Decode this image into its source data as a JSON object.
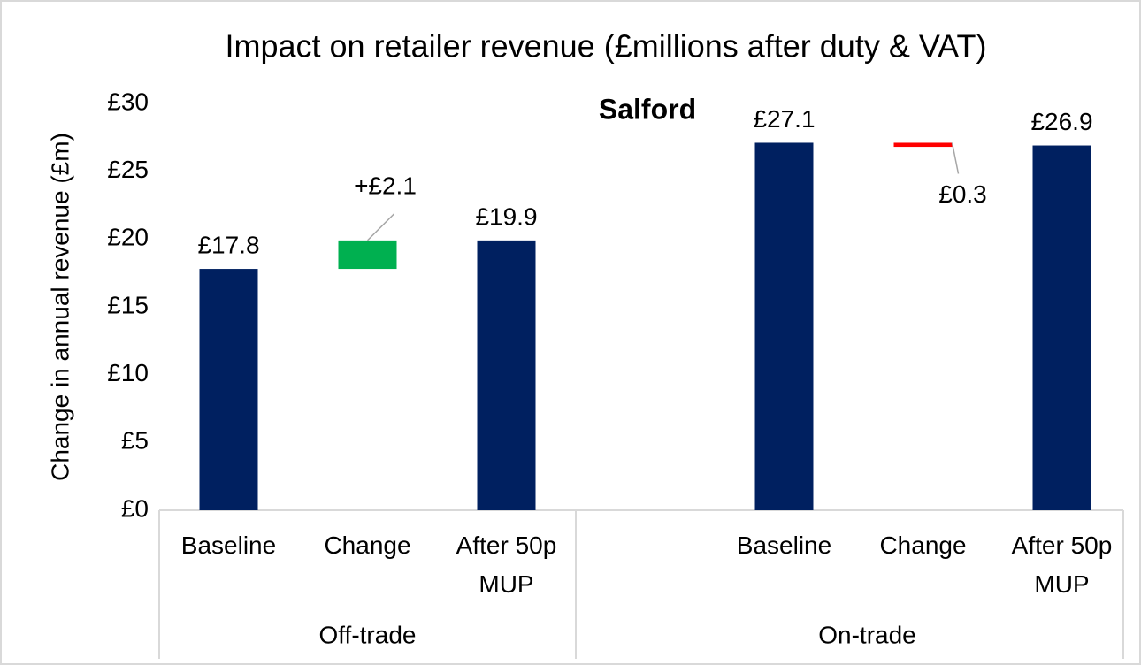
{
  "chart_data": {
    "type": "waterfall",
    "title": "Impact on retailer revenue (£millions after duty & VAT)",
    "subtitle": "Salford",
    "ylabel": "Change in annual revenue (£m)",
    "groups": [
      {
        "name": "Off-trade",
        "categories": [
          "Baseline",
          "Change",
          "After 50p MUP"
        ],
        "measures": [
          "total",
          "relative",
          "total"
        ],
        "values": [
          17.8,
          2.1,
          19.9
        ],
        "value_labels": [
          "£17.8",
          "+£2.1",
          "£19.9"
        ]
      },
      {
        "name": "On-trade",
        "categories": [
          "Baseline",
          "Change",
          "After 50p MUP"
        ],
        "measures": [
          "total",
          "relative",
          "total"
        ],
        "values": [
          27.1,
          -0.3,
          26.9
        ],
        "value_labels": [
          "£27.1",
          "£0.3",
          "£26.9"
        ]
      }
    ],
    "colors": {
      "total": "#002060",
      "increase": "#00b050",
      "decrease": "#ff0000"
    },
    "ylim": [
      0,
      30
    ],
    "yticks": [
      {
        "value": 0,
        "label": "£0"
      },
      {
        "value": 5,
        "label": "£5"
      },
      {
        "value": 10,
        "label": "£10"
      },
      {
        "value": 15,
        "label": "£15"
      },
      {
        "value": 20,
        "label": "£20"
      },
      {
        "value": 25,
        "label": "£25"
      },
      {
        "value": 30,
        "label": "£30"
      }
    ],
    "grid": false
  }
}
